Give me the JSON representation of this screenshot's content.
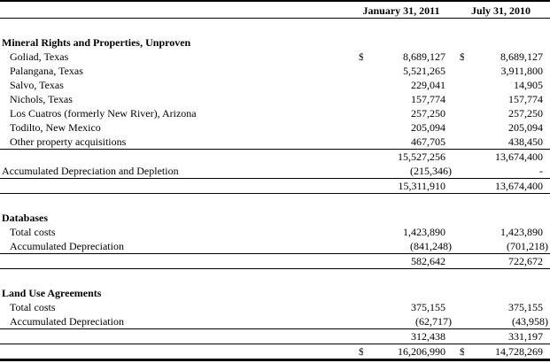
{
  "header": {
    "period1": "January 31, 2011",
    "period2": "July 31, 2010"
  },
  "rows": [
    {
      "label": "Mineral Rights and Properties, Unproven"
    },
    {
      "label": "Goliad, Texas",
      "cur1": "$",
      "val1": "8,689,127",
      "cur2": "$",
      "val2": "8,689,127"
    },
    {
      "label": "Palangana, Texas",
      "val1": "5,521,265",
      "val2": "3,911,800"
    },
    {
      "label": "Salvo, Texas",
      "val1": "229,041",
      "val2": "14,905"
    },
    {
      "label": "Nichols, Texas",
      "val1": "157,774",
      "val2": "157,774"
    },
    {
      "label": "Los Cuatros (formerly New River), Arizona",
      "val1": "257,250",
      "val2": "257,250"
    },
    {
      "label": "Todilto, New Mexico",
      "val1": "205,094",
      "val2": "205,094"
    },
    {
      "label": "Other property acquisitions",
      "val1": "467,705",
      "val2": "438,450"
    },
    {
      "label": "",
      "val1": "15,527,256",
      "val2": "13,674,400"
    },
    {
      "label": "Accumulated Depreciation and Depletion",
      "val1": "(215,346)",
      "val2": "-"
    },
    {
      "label": "",
      "val1": "15,311,910",
      "val2": "13,674,400"
    },
    {
      "label": "Databases"
    },
    {
      "label": "Total costs",
      "val1": "1,423,890",
      "val2": "1,423,890"
    },
    {
      "label": "Accumulated Depreciation",
      "val1": "(841,248)",
      "val2": "(701,218)"
    },
    {
      "label": "",
      "val1": "582,642",
      "val2": "722,672"
    },
    {
      "label": "Land Use Agreements"
    },
    {
      "label": "Total costs",
      "val1": "375,155",
      "val2": "375,155"
    },
    {
      "label": "Accumulated Depreciation",
      "val1": "(62,717)",
      "val2": "(43,958)"
    },
    {
      "label": "",
      "val1": "312,438",
      "val2": "331,197"
    },
    {
      "label": "",
      "cur1": "$",
      "val1": "16,206,990",
      "cur2": "$",
      "val2": "14,728,269"
    }
  ]
}
